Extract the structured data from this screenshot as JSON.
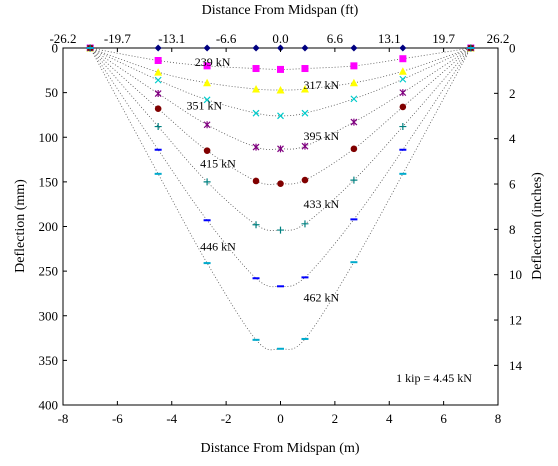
{
  "chart_data": {
    "type": "scatter",
    "title": "",
    "xlabel": "Distance From Midspan (m)",
    "ylabel": "Deflection (mm)",
    "x2label": "Distance From Midspan (ft)",
    "y2label": "Deflection (inches)",
    "xlim": [
      -8,
      8
    ],
    "ylim": [
      0,
      400
    ],
    "y_reversed": true,
    "y2lim": [
      0,
      15.748
    ],
    "grid": false,
    "legend": "none",
    "x_ticks": [
      "-8",
      "-6",
      "-4",
      "-2",
      "0",
      "2",
      "4",
      "6",
      "8"
    ],
    "y_ticks": [
      "0",
      "50",
      "100",
      "150",
      "200",
      "250",
      "300",
      "350",
      "400"
    ],
    "x2_ticks": [
      "-26.2",
      "-19.7",
      "-13.1",
      "-6.6",
      "0.0",
      "6.6",
      "13.1",
      "19.7",
      "26.2"
    ],
    "y2_ticks": [
      "0",
      "2",
      "4",
      "6",
      "8",
      "10",
      "12",
      "14"
    ],
    "annotation": "1 kip = 4.45 kN",
    "x_positions": [
      -7.0,
      -4.5,
      -2.7,
      -0.9,
      0.0,
      0.9,
      2.7,
      4.5,
      7.0
    ],
    "series": [
      {
        "name": "",
        "marker": "diamond",
        "color": "#000080",
        "values": [
          0,
          0,
          0,
          0,
          0,
          0,
          0,
          0,
          0
        ]
      },
      {
        "name": "239 kN",
        "marker": "square",
        "color": "#ff00ff",
        "values": [
          0,
          14,
          20,
          23,
          24,
          23,
          20,
          12,
          0
        ]
      },
      {
        "name": "317 kN",
        "marker": "triangle",
        "color": "#ffff00",
        "values": [
          0,
          27,
          39,
          46,
          47,
          46,
          39,
          26,
          0
        ]
      },
      {
        "name": "351 kN",
        "marker": "x",
        "color": "#00cccc",
        "values": [
          0,
          36,
          58,
          73,
          76,
          73,
          57,
          35,
          0
        ]
      },
      {
        "name": "395 kN",
        "marker": "star",
        "color": "#800080",
        "values": [
          0,
          51,
          86,
          111,
          113,
          110,
          83,
          50,
          0
        ]
      },
      {
        "name": "415 kN",
        "marker": "circle",
        "color": "#800000",
        "values": [
          0,
          68,
          115,
          149,
          152,
          148,
          113,
          66,
          0
        ]
      },
      {
        "name": "433 kN",
        "marker": "plus",
        "color": "#008080",
        "values": [
          0,
          88,
          150,
          198,
          204,
          197,
          148,
          88,
          0
        ]
      },
      {
        "name": "446 kN",
        "marker": "dash",
        "color": "#0000ff",
        "values": [
          0,
          114,
          193,
          258,
          267,
          257,
          192,
          114,
          0
        ]
      },
      {
        "name": "462 kN",
        "marker": "dash",
        "color": "#00aacc",
        "values": [
          0,
          141,
          241,
          327,
          337,
          326,
          240,
          141,
          0
        ]
      }
    ],
    "label_placement": [
      {
        "series": 1,
        "x": -2.5,
        "y": 20
      },
      {
        "series": 2,
        "x": 1.5,
        "y": 46
      },
      {
        "series": 3,
        "x": -2.8,
        "y": 69
      },
      {
        "series": 4,
        "x": 1.5,
        "y": 103
      },
      {
        "series": 5,
        "x": -2.3,
        "y": 134
      },
      {
        "series": 6,
        "x": 1.5,
        "y": 179
      },
      {
        "series": 7,
        "x": -2.3,
        "y": 227
      },
      {
        "series": 8,
        "x": 1.5,
        "y": 284
      }
    ]
  }
}
